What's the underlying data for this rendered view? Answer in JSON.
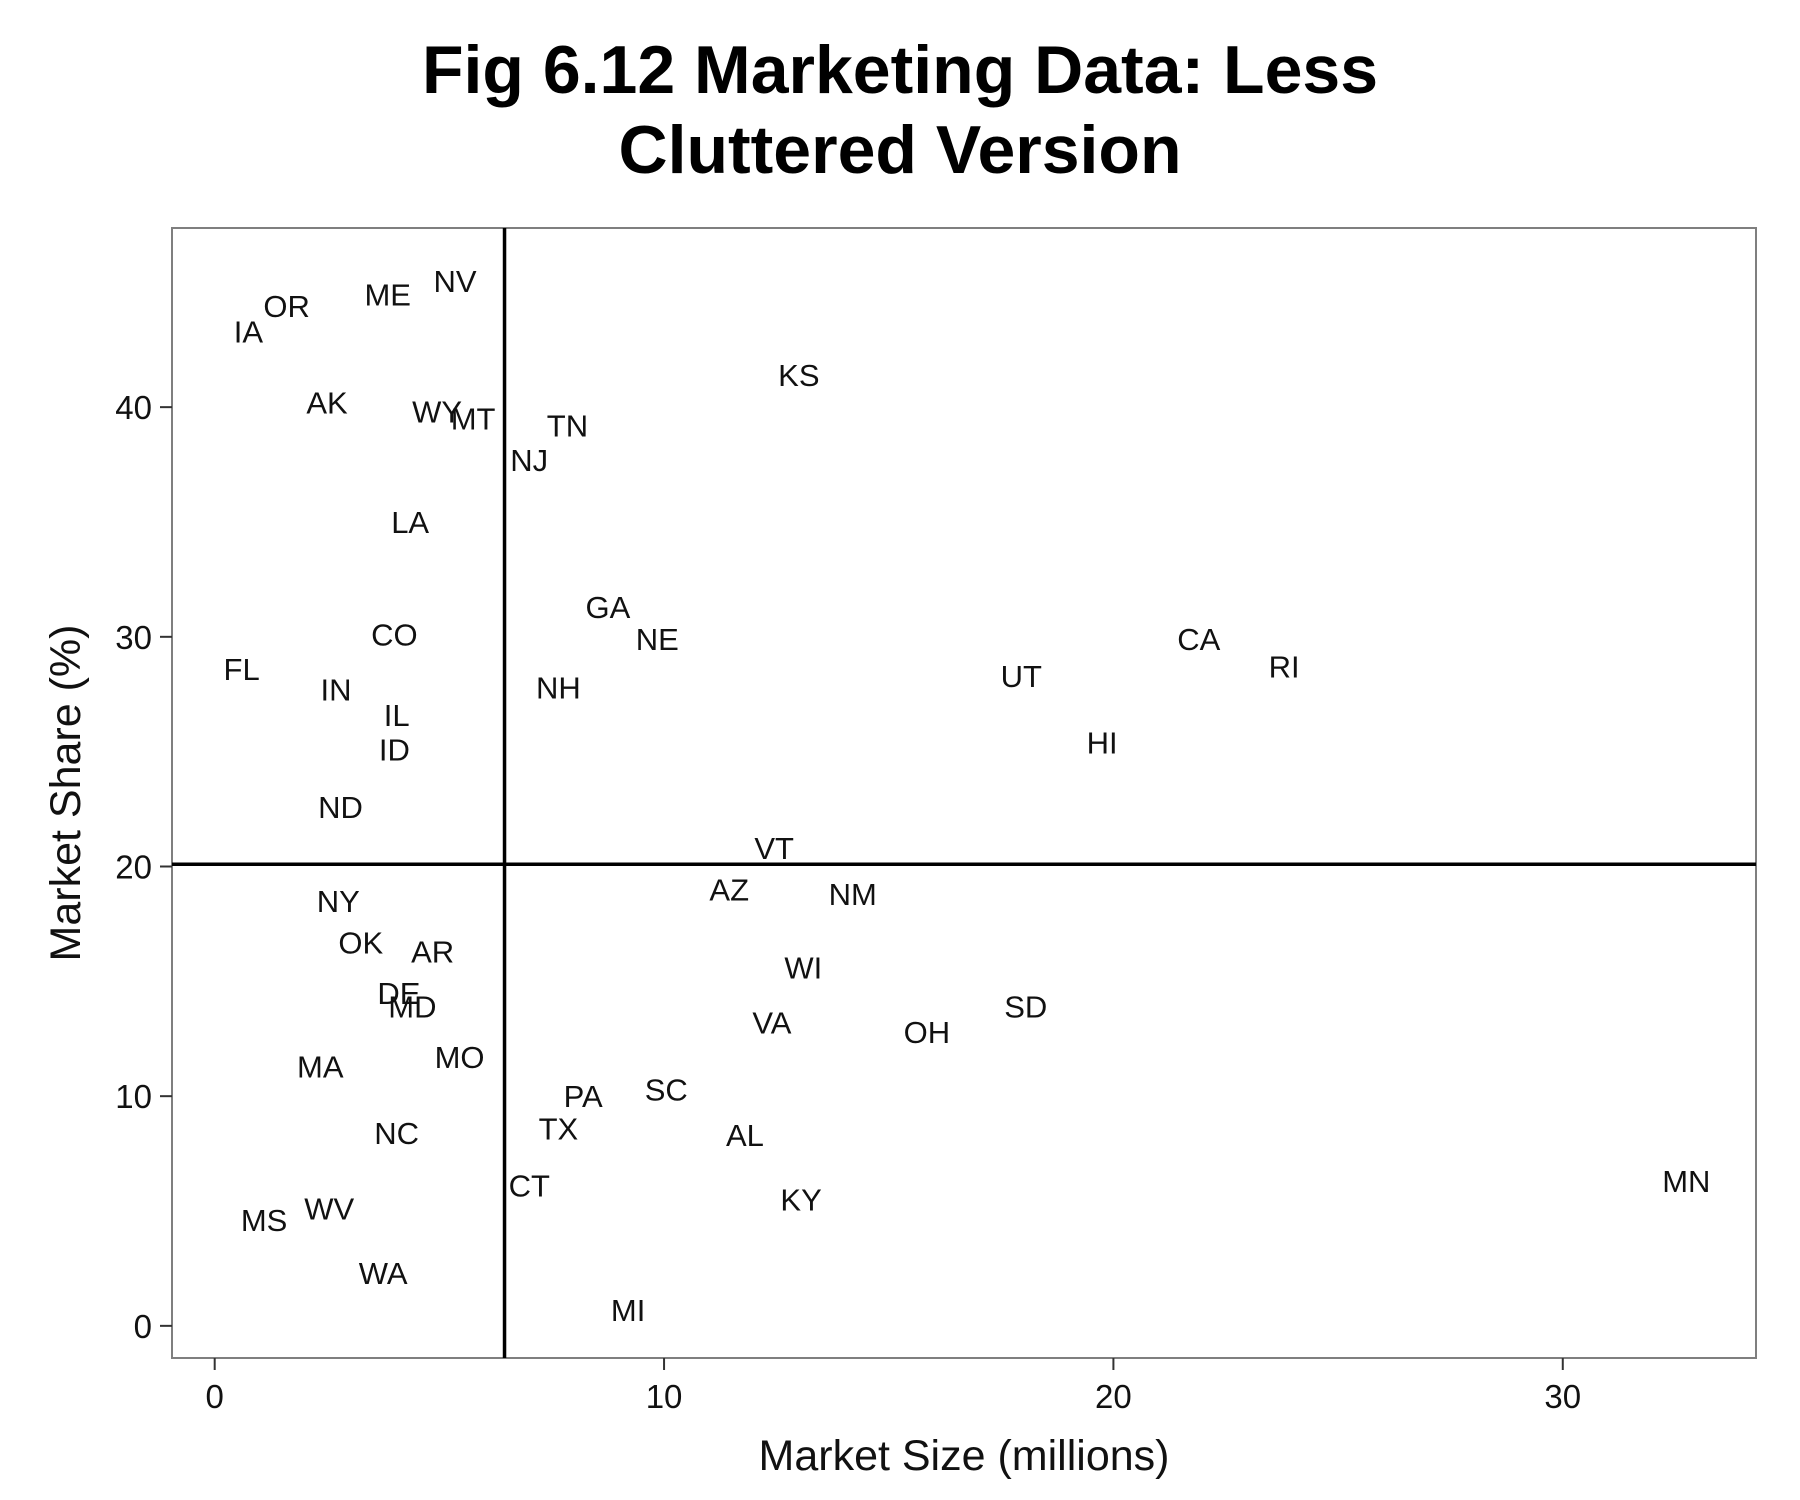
{
  "chart_data": {
    "type": "scatter",
    "title_lines": [
      "Fig 6.12 Marketing Data: Less",
      "Cluttered Version"
    ],
    "xlabel": "Market Size (millions)",
    "ylabel": "Market Share (%)",
    "xlim": [
      -0.95,
      34.3
    ],
    "ylim": [
      -1.4,
      47.8
    ],
    "xticks": [
      0,
      10,
      20,
      30
    ],
    "yticks": [
      0,
      10,
      20,
      30,
      40
    ],
    "xtick_labels": [
      "0",
      "10",
      "20",
      "30"
    ],
    "ytick_labels": [
      "0",
      "10",
      "20",
      "30",
      "40"
    ],
    "grid": false,
    "reference_lines": {
      "vertical_x": 6.45,
      "horizontal_y": 20.1
    },
    "points": [
      {
        "label": "IA",
        "x": 0.75,
        "y": 43.3
      },
      {
        "label": "OR",
        "x": 1.6,
        "y": 44.4
      },
      {
        "label": "ME",
        "x": 3.85,
        "y": 44.9
      },
      {
        "label": "NV",
        "x": 5.35,
        "y": 45.5
      },
      {
        "label": "AK",
        "x": 2.5,
        "y": 40.2
      },
      {
        "label": "WY",
        "x": 4.95,
        "y": 39.8
      },
      {
        "label": "MT",
        "x": 5.75,
        "y": 39.5
      },
      {
        "label": "TN",
        "x": 7.85,
        "y": 39.2
      },
      {
        "label": "NJ",
        "x": 7.0,
        "y": 37.7
      },
      {
        "label": "KS",
        "x": 13.0,
        "y": 41.4
      },
      {
        "label": "LA",
        "x": 4.35,
        "y": 35.0
      },
      {
        "label": "GA",
        "x": 8.75,
        "y": 31.3
      },
      {
        "label": "NE",
        "x": 9.85,
        "y": 29.9
      },
      {
        "label": "CO",
        "x": 4.0,
        "y": 30.1
      },
      {
        "label": "FL",
        "x": 0.6,
        "y": 28.6
      },
      {
        "label": "IN",
        "x": 2.7,
        "y": 27.7
      },
      {
        "label": "NH",
        "x": 7.65,
        "y": 27.8
      },
      {
        "label": "IL",
        "x": 4.05,
        "y": 26.6
      },
      {
        "label": "ID",
        "x": 4.0,
        "y": 25.1
      },
      {
        "label": "ND",
        "x": 2.8,
        "y": 22.6
      },
      {
        "label": "CA",
        "x": 21.9,
        "y": 29.9
      },
      {
        "label": "RI",
        "x": 23.8,
        "y": 28.7
      },
      {
        "label": "UT",
        "x": 17.95,
        "y": 28.3
      },
      {
        "label": "HI",
        "x": 19.75,
        "y": 25.4
      },
      {
        "label": "VT",
        "x": 12.45,
        "y": 20.8
      },
      {
        "label": "AZ",
        "x": 11.45,
        "y": 19.0
      },
      {
        "label": "NM",
        "x": 14.2,
        "y": 18.8
      },
      {
        "label": "NY",
        "x": 2.75,
        "y": 18.5
      },
      {
        "label": "OK",
        "x": 3.25,
        "y": 16.7
      },
      {
        "label": "AR",
        "x": 4.85,
        "y": 16.3
      },
      {
        "label": "WI",
        "x": 13.1,
        "y": 15.6
      },
      {
        "label": "DE",
        "x": 4.1,
        "y": 14.5
      },
      {
        "label": "MD",
        "x": 4.4,
        "y": 13.9
      },
      {
        "label": "VA",
        "x": 12.4,
        "y": 13.2
      },
      {
        "label": "SD",
        "x": 18.05,
        "y": 13.9
      },
      {
        "label": "OH",
        "x": 15.85,
        "y": 12.8
      },
      {
        "label": "MA",
        "x": 2.35,
        "y": 11.3
      },
      {
        "label": "MO",
        "x": 5.45,
        "y": 11.7
      },
      {
        "label": "SC",
        "x": 10.05,
        "y": 10.3
      },
      {
        "label": "PA",
        "x": 8.2,
        "y": 10.0
      },
      {
        "label": "NC",
        "x": 4.05,
        "y": 8.4
      },
      {
        "label": "TX",
        "x": 7.65,
        "y": 8.6
      },
      {
        "label": "AL",
        "x": 11.8,
        "y": 8.3
      },
      {
        "label": "CT",
        "x": 7.0,
        "y": 6.1
      },
      {
        "label": "KY",
        "x": 13.05,
        "y": 5.5
      },
      {
        "label": "MN",
        "x": 32.75,
        "y": 6.3
      },
      {
        "label": "MS",
        "x": 1.1,
        "y": 4.6
      },
      {
        "label": "WV",
        "x": 2.55,
        "y": 5.1
      },
      {
        "label": "WA",
        "x": 3.75,
        "y": 2.3
      },
      {
        "label": "MI",
        "x": 9.2,
        "y": 0.7
      }
    ]
  }
}
